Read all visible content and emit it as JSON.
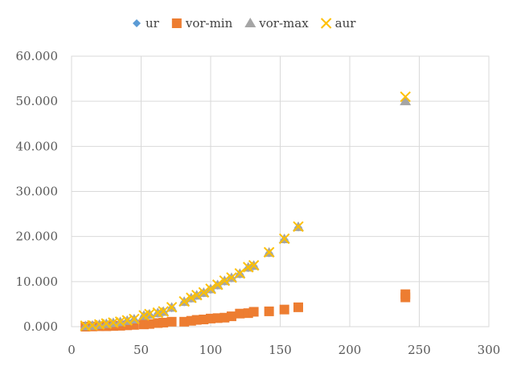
{
  "chart_data": {
    "type": "scatter",
    "title": "",
    "xlabel": "",
    "ylabel": "",
    "xlim": [
      0,
      300
    ],
    "ylim": [
      0,
      60
    ],
    "x_ticks": [
      0,
      50,
      100,
      150,
      200,
      250,
      300
    ],
    "y_ticks": [
      0,
      10,
      20,
      30,
      40,
      50,
      60
    ],
    "x_tick_labels": [
      "0",
      "50",
      "100",
      "150",
      "200",
      "250",
      "300"
    ],
    "y_tick_labels": [
      "0.000",
      "10.000",
      "20.000",
      "30.000",
      "40.000",
      "50.000",
      "60.000"
    ],
    "grid": true,
    "legend_position": "top",
    "series": [
      {
        "name": "ur",
        "marker": "diamond",
        "color": "#5b9bd5",
        "x": [
          10,
          15,
          20,
          25,
          30,
          35,
          40,
          45,
          52,
          56,
          62,
          66,
          72,
          81,
          86,
          90,
          95,
          100,
          105,
          110,
          115,
          121,
          127,
          131,
          142,
          153,
          163,
          240
        ],
        "y": [
          0.1,
          0.2,
          0.3,
          0.5,
          0.7,
          0.9,
          1.2,
          1.5,
          2.3,
          2.6,
          2.9,
          3.2,
          4.1,
          5.4,
          6.2,
          6.8,
          7.4,
          8.2,
          9.1,
          10.0,
          10.7,
          11.6,
          13.0,
          13.4,
          16.3,
          19.3,
          22.0,
          50.2
        ]
      },
      {
        "name": "vor-min",
        "marker": "square",
        "color": "#ed7d31",
        "x": [
          10,
          15,
          20,
          25,
          30,
          35,
          40,
          45,
          52,
          56,
          62,
          66,
          72,
          81,
          86,
          90,
          95,
          100,
          105,
          110,
          115,
          121,
          127,
          131,
          142,
          153,
          163,
          240,
          240
        ],
        "y": [
          0.0,
          0.05,
          0.1,
          0.1,
          0.15,
          0.2,
          0.3,
          0.4,
          0.5,
          0.6,
          0.8,
          0.9,
          1.1,
          1.1,
          1.3,
          1.5,
          1.6,
          1.8,
          1.9,
          2.0,
          2.3,
          2.9,
          3.0,
          3.3,
          3.4,
          3.8,
          4.3,
          6.5,
          7.2
        ]
      },
      {
        "name": "vor-max",
        "marker": "triangle",
        "color": "#a5a5a5",
        "x": [
          10,
          15,
          20,
          25,
          30,
          35,
          40,
          45,
          52,
          56,
          62,
          66,
          72,
          81,
          86,
          90,
          95,
          100,
          105,
          110,
          115,
          121,
          127,
          131,
          142,
          153,
          163,
          240
        ],
        "y": [
          0.1,
          0.2,
          0.4,
          0.6,
          0.8,
          1.0,
          1.3,
          1.6,
          2.4,
          2.7,
          3.0,
          3.3,
          4.2,
          5.5,
          6.3,
          6.9,
          7.5,
          8.3,
          9.2,
          10.1,
          10.8,
          11.7,
          13.1,
          13.5,
          16.4,
          19.4,
          22.1,
          50.0
        ]
      },
      {
        "name": "aur",
        "marker": "x",
        "color": "#ffc000",
        "x": [
          10,
          15,
          20,
          25,
          30,
          35,
          40,
          45,
          52,
          56,
          62,
          66,
          72,
          81,
          86,
          90,
          95,
          100,
          105,
          110,
          115,
          121,
          127,
          131,
          142,
          153,
          163,
          240
        ],
        "y": [
          0.2,
          0.3,
          0.5,
          0.7,
          0.9,
          1.1,
          1.4,
          1.7,
          2.5,
          2.8,
          3.1,
          3.4,
          4.3,
          5.6,
          6.4,
          7.0,
          7.6,
          8.4,
          9.3,
          10.2,
          10.9,
          11.8,
          13.2,
          13.6,
          16.5,
          19.5,
          22.2,
          51.0
        ]
      }
    ]
  }
}
